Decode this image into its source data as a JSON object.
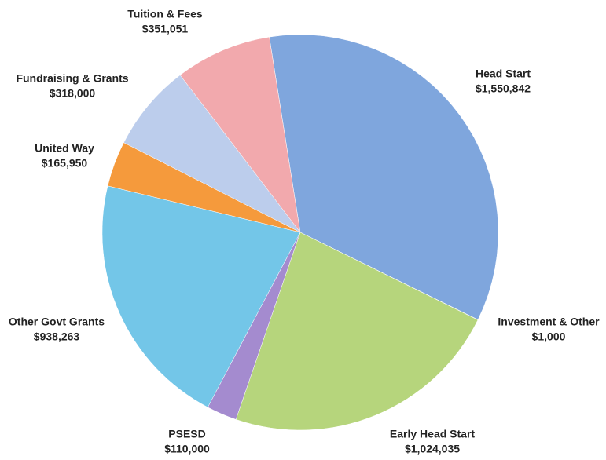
{
  "chart_data": {
    "type": "pie",
    "categories": [
      "Head Start",
      "Investment & Other",
      "Early Head Start",
      "PSESD",
      "Other Govt Grants",
      "United Way",
      "Fundraising & Grants",
      "Tuition & Fees"
    ],
    "values": [
      1550842,
      1000,
      1024035,
      110000,
      938263,
      165950,
      318000,
      351051
    ],
    "value_labels": [
      "$1,550,842",
      "$1,000",
      "$1,024,035",
      "$110,000",
      "$938,263",
      "$165,950",
      "$318,000",
      "$351,051"
    ],
    "colors": [
      "#7fa6dd",
      "#5a6f8c",
      "#b6d57c",
      "#a48bcf",
      "#73c6e8",
      "#f59a3c",
      "#bccdec",
      "#f2a9ad"
    ]
  }
}
